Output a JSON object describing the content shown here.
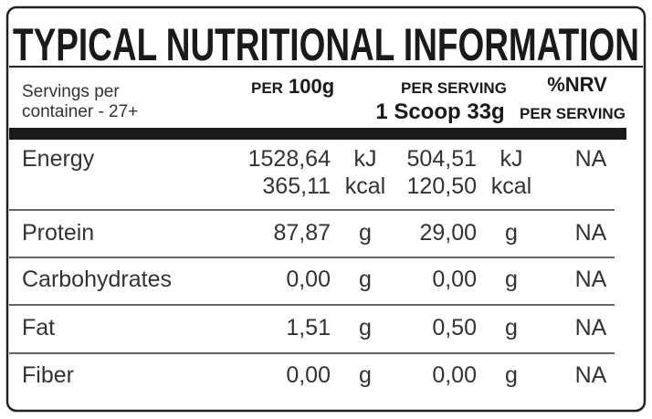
{
  "title": "TYPICAL NUTRITIONAL INFORMATION",
  "header": {
    "servings": [
      "Servings per",
      "container - 27+"
    ],
    "per_100g": {
      "prefix": "PER",
      "amount": "100g"
    },
    "per_serving": {
      "label": "PER SERVING",
      "amount": "1 Scoop 33g"
    },
    "nrv": {
      "label": "%NRV",
      "sub": "PER SERVING"
    }
  },
  "rows": [
    {
      "name": "Energy",
      "per_100g": [
        {
          "amount": "1528,64",
          "unit": "kJ"
        },
        {
          "amount": "365,11",
          "unit": "kcal"
        }
      ],
      "per_serving": [
        {
          "amount": "504,51",
          "unit": "kJ"
        },
        {
          "amount": "120,50",
          "unit": "kcal"
        }
      ],
      "nrv": "NA"
    },
    {
      "name": "Protein",
      "per_100g": [
        {
          "amount": "87,87",
          "unit": "g"
        }
      ],
      "per_serving": [
        {
          "amount": "29,00",
          "unit": "g"
        }
      ],
      "nrv": "NA"
    },
    {
      "name": "Carbohydrates",
      "per_100g": [
        {
          "amount": "0,00",
          "unit": "g"
        }
      ],
      "per_serving": [
        {
          "amount": "0,00",
          "unit": "g"
        }
      ],
      "nrv": "NA"
    },
    {
      "name": "Fat",
      "per_100g": [
        {
          "amount": "1,51",
          "unit": "g"
        }
      ],
      "per_serving": [
        {
          "amount": "0,50",
          "unit": "g"
        }
      ],
      "nrv": "NA"
    },
    {
      "name": "Fiber",
      "per_100g": [
        {
          "amount": "0,00",
          "unit": "g"
        }
      ],
      "per_serving": [
        {
          "amount": "0,00",
          "unit": "g"
        }
      ],
      "nrv": "NA"
    }
  ]
}
